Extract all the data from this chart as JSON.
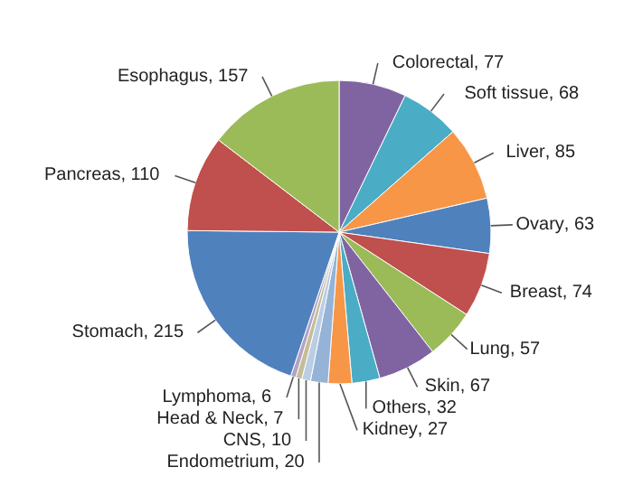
{
  "chart_data": {
    "type": "pie",
    "categories": [
      "Colorectal",
      "Soft tissue",
      "Liver",
      "Ovary",
      "Breast",
      "Lung",
      "Skin",
      "Others",
      "Kidney",
      "Endometrium",
      "CNS",
      "Head & Neck",
      "Lymphoma",
      "Stomach",
      "Pancreas",
      "Esophagus"
    ],
    "values": [
      77,
      68,
      85,
      63,
      74,
      57,
      67,
      32,
      27,
      20,
      10,
      7,
      6,
      215,
      110,
      157
    ],
    "colors": [
      "#8064a2",
      "#4bacc6",
      "#f79646",
      "#4f81bd",
      "#c0504d",
      "#9bbb59",
      "#8064a2",
      "#4bacc6",
      "#f79646",
      "#95b3d7",
      "#b9cde5",
      "#c4bd97",
      "#b3a2c7",
      "#4f81bd",
      "#c0504d",
      "#9bbb59"
    ],
    "value_labels": [
      ", 77",
      ", 68",
      ", 85",
      ", 63",
      ", 74",
      ", 57",
      ", 67",
      ", 32",
      ", 27",
      ", 20",
      ", 10",
      ", 7",
      ", 6",
      ", 215",
      ", 110",
      ", 157"
    ],
    "legend": false
  }
}
